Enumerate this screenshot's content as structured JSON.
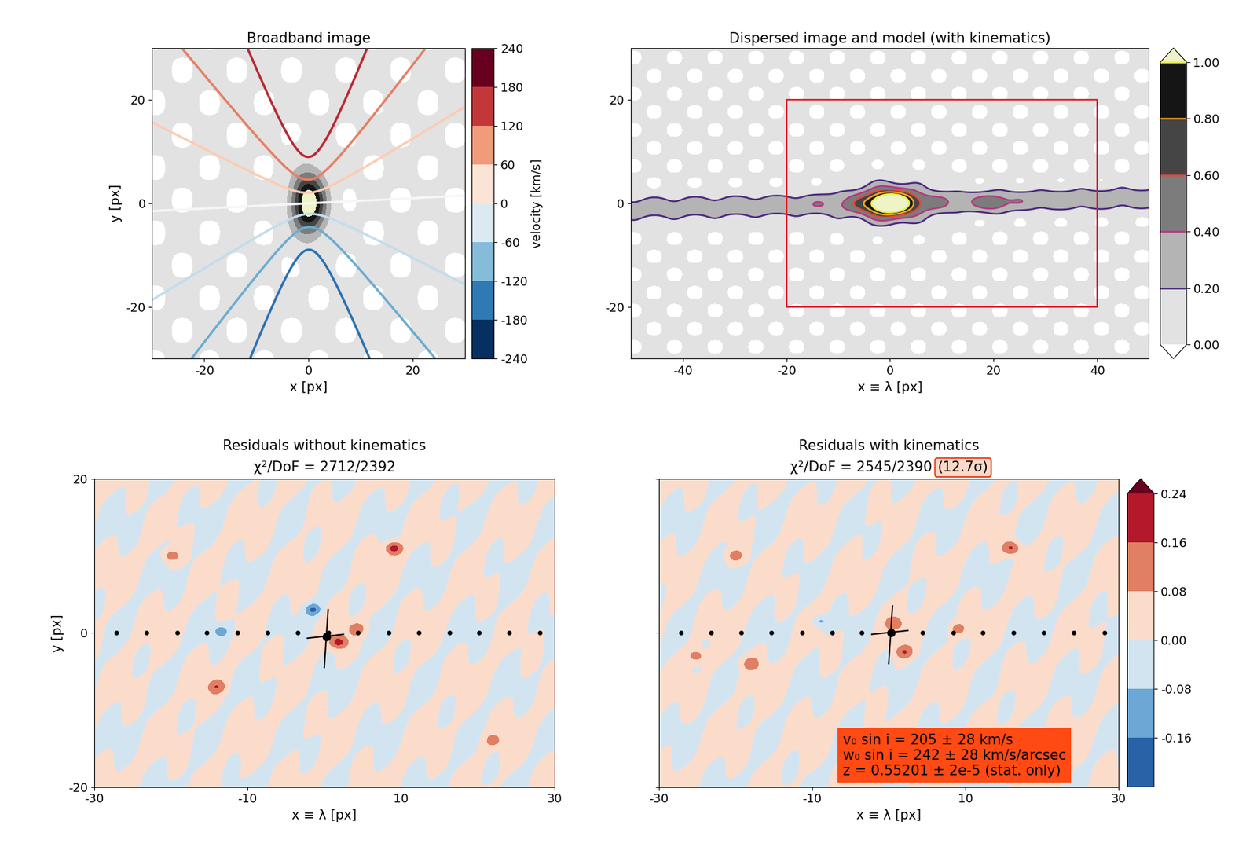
{
  "chart_data": [
    {
      "type": "velocity_field",
      "title": "Broadband image",
      "xlabel": "x [px]",
      "ylabel": "y [px]",
      "xlim": [
        -30,
        30
      ],
      "ylim": [
        -30,
        30
      ],
      "xticks": [
        -20,
        0,
        20
      ],
      "yticks": [
        -20,
        0,
        20
      ],
      "contour_levels": [
        -180,
        -120,
        -60,
        0,
        60,
        120,
        180
      ],
      "colorbar": {
        "label": "velocity [km/s]",
        "range": [
          -240,
          240
        ],
        "ticks": [
          -240,
          -180,
          -120,
          -60,
          0,
          60,
          120,
          180,
          240
        ]
      }
    },
    {
      "type": "dispersed_image",
      "title": "Dispersed image and model (with kinematics)",
      "xlabel": "x ≡ λ [px]",
      "xlim": [
        -50,
        50
      ],
      "ylim": [
        -30,
        30
      ],
      "xticks": [
        -40,
        -20,
        0,
        20,
        40
      ],
      "yticks": [
        -20,
        0,
        20
      ],
      "rectangle": {
        "x": [
          -20,
          40
        ],
        "y": [
          -20,
          20
        ]
      },
      "contour_levels": [
        0.2,
        0.4,
        0.6,
        0.8,
        1.0
      ],
      "colorbar": {
        "range": [
          0,
          1
        ],
        "ticks": [
          {
            "value": 0,
            "label": "0.00"
          },
          {
            "value": 0.2,
            "label": "0.20"
          },
          {
            "value": 0.4,
            "label": "0.40"
          },
          {
            "value": 0.6,
            "label": "0.60"
          },
          {
            "value": 0.8,
            "label": "0.80"
          },
          {
            "value": 1.0,
            "label": "1.00"
          }
        ]
      }
    },
    {
      "type": "residual_map",
      "title": "Residuals without kinematics",
      "subtitle": "χ²/DoF = 2712/2392",
      "xlabel": "x ≡ λ [px]",
      "ylabel": "y [px]",
      "xlim": [
        -30,
        30
      ],
      "ylim": [
        -20,
        20
      ],
      "xticks": [
        -30,
        -10,
        10,
        30
      ],
      "yticks": [
        -20,
        0,
        20
      ],
      "trace_x": [
        -27.1,
        -23.2,
        -19.2,
        -15.3,
        -11.3,
        -7.4,
        -3.5,
        0.5,
        4.4,
        8.4,
        12.3,
        16.3,
        20.2,
        24.1,
        28.1
      ],
      "center": [
        0.3,
        -0.5
      ]
    },
    {
      "type": "residual_map",
      "title": "Residuals with kinematics",
      "subtitle": "χ²/DoF = 2545/2390",
      "highlight": "(12.7σ)",
      "xlabel": "x ≡ λ [px]",
      "xlim": [
        -30,
        30
      ],
      "ylim": [
        -20,
        20
      ],
      "xticks": [
        -30,
        -10,
        10,
        30
      ],
      "yticks": [
        -20,
        0,
        20
      ],
      "tick_labels": "x",
      "trace_x": [
        -27.1,
        -23.2,
        -19.2,
        -15.3,
        -11.3,
        -7.4,
        -3.5,
        0.5,
        4.4,
        8.4,
        12.3,
        16.3,
        20.2,
        24.1,
        28.1
      ],
      "center": [
        0.3,
        0.0
      ],
      "annotation": [
        "v₀ sin i = 205 ± 28 km/s",
        "w₀ sin i = 242 ± 28 km/s/arcsec",
        "z = 0.55201 ± 2e-5 (stat. only)"
      ],
      "colorbar": {
        "range": [
          -0.24,
          0.24
        ],
        "ticks": [
          {
            "value": -0.16,
            "label": "-0.16"
          },
          {
            "value": -0.08,
            "label": "-0.08"
          },
          {
            "value": 0,
            "label": "0.00"
          },
          {
            "value": 0.08,
            "label": "0.08"
          },
          {
            "value": 0.16,
            "label": "0.16"
          },
          {
            "value": 0.24,
            "label": "0.24"
          }
        ]
      }
    }
  ]
}
